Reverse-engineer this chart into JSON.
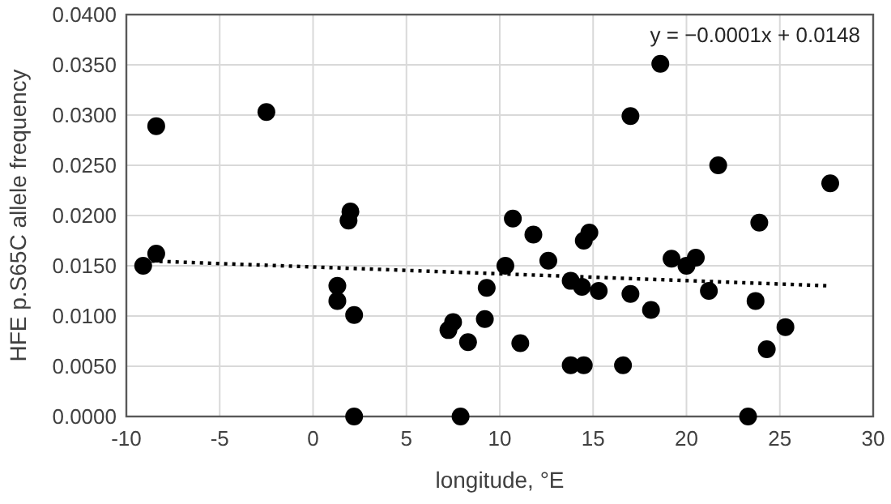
{
  "chart_data": {
    "type": "scatter",
    "xlabel": "longitude, °E",
    "ylabel": "HFE p.S65C allele frequency",
    "annotations": [
      "y = −0.0001x + 0.0148"
    ],
    "xlim": [
      -10,
      30
    ],
    "xticks": [
      -10,
      -5,
      0,
      5,
      10,
      15,
      20,
      25,
      30
    ],
    "ylim": [
      0,
      0.04
    ],
    "yticks": [
      {
        "value": 0,
        "label": "0.0000"
      },
      {
        "value": 0.005,
        "label": "0.0050"
      },
      {
        "value": 0.01,
        "label": "0.0100"
      },
      {
        "value": 0.015,
        "label": "0.0150"
      },
      {
        "value": 0.02,
        "label": "0.0200"
      },
      {
        "value": 0.025,
        "label": "0.0250"
      },
      {
        "value": 0.03,
        "label": "0.0300"
      },
      {
        "value": 0.035,
        "label": "0.0350"
      },
      {
        "value": 0.04,
        "label": "0.0400"
      }
    ],
    "grid": true,
    "marker": "circle",
    "series": [
      {
        "color": "#000000",
        "x": [
          -9.1,
          -8.4,
          -8.4,
          -2.5,
          2.0,
          1.9,
          1.3,
          1.3,
          2.2,
          2.2,
          7.25,
          7.5,
          8.3,
          7.9,
          9.3,
          9.2,
          10.3,
          10.7,
          11.1,
          11.8,
          12.6,
          13.8,
          14.4,
          13.8,
          14.5,
          14.5,
          14.8,
          15.3,
          17.0,
          17.0,
          16.6,
          18.1,
          18.6,
          19.2,
          20.0,
          20.5,
          21.2,
          21.7,
          23.9,
          23.7,
          23.3,
          24.3,
          25.3,
          27.7
        ],
        "values": [
          0.015,
          0.0289,
          0.0162,
          0.0303,
          0.0204,
          0.0195,
          0.013,
          0.0115,
          0.0101,
          0,
          0.0086,
          0.0094,
          0.0074,
          0,
          0.0128,
          0.0097,
          0.015,
          0.0197,
          0.0073,
          0.0181,
          0.0155,
          0.0135,
          0.0129,
          0.0051,
          0.0051,
          0.0175,
          0.0183,
          0.0125,
          0.0122,
          0.0299,
          0.0051,
          0.0106,
          0.0351,
          0.0157,
          0.015,
          0.0158,
          0.0125,
          0.025,
          0.0193,
          0.0115,
          0,
          0.0067,
          0.0089,
          0.0232
        ]
      },
      {
        "type": "line",
        "color": "#000000",
        "line_style": "dotted",
        "marker": "none",
        "x": [
          -9.1,
          27.7
        ],
        "values": [
          0.0155,
          0.013
        ]
      }
    ]
  }
}
